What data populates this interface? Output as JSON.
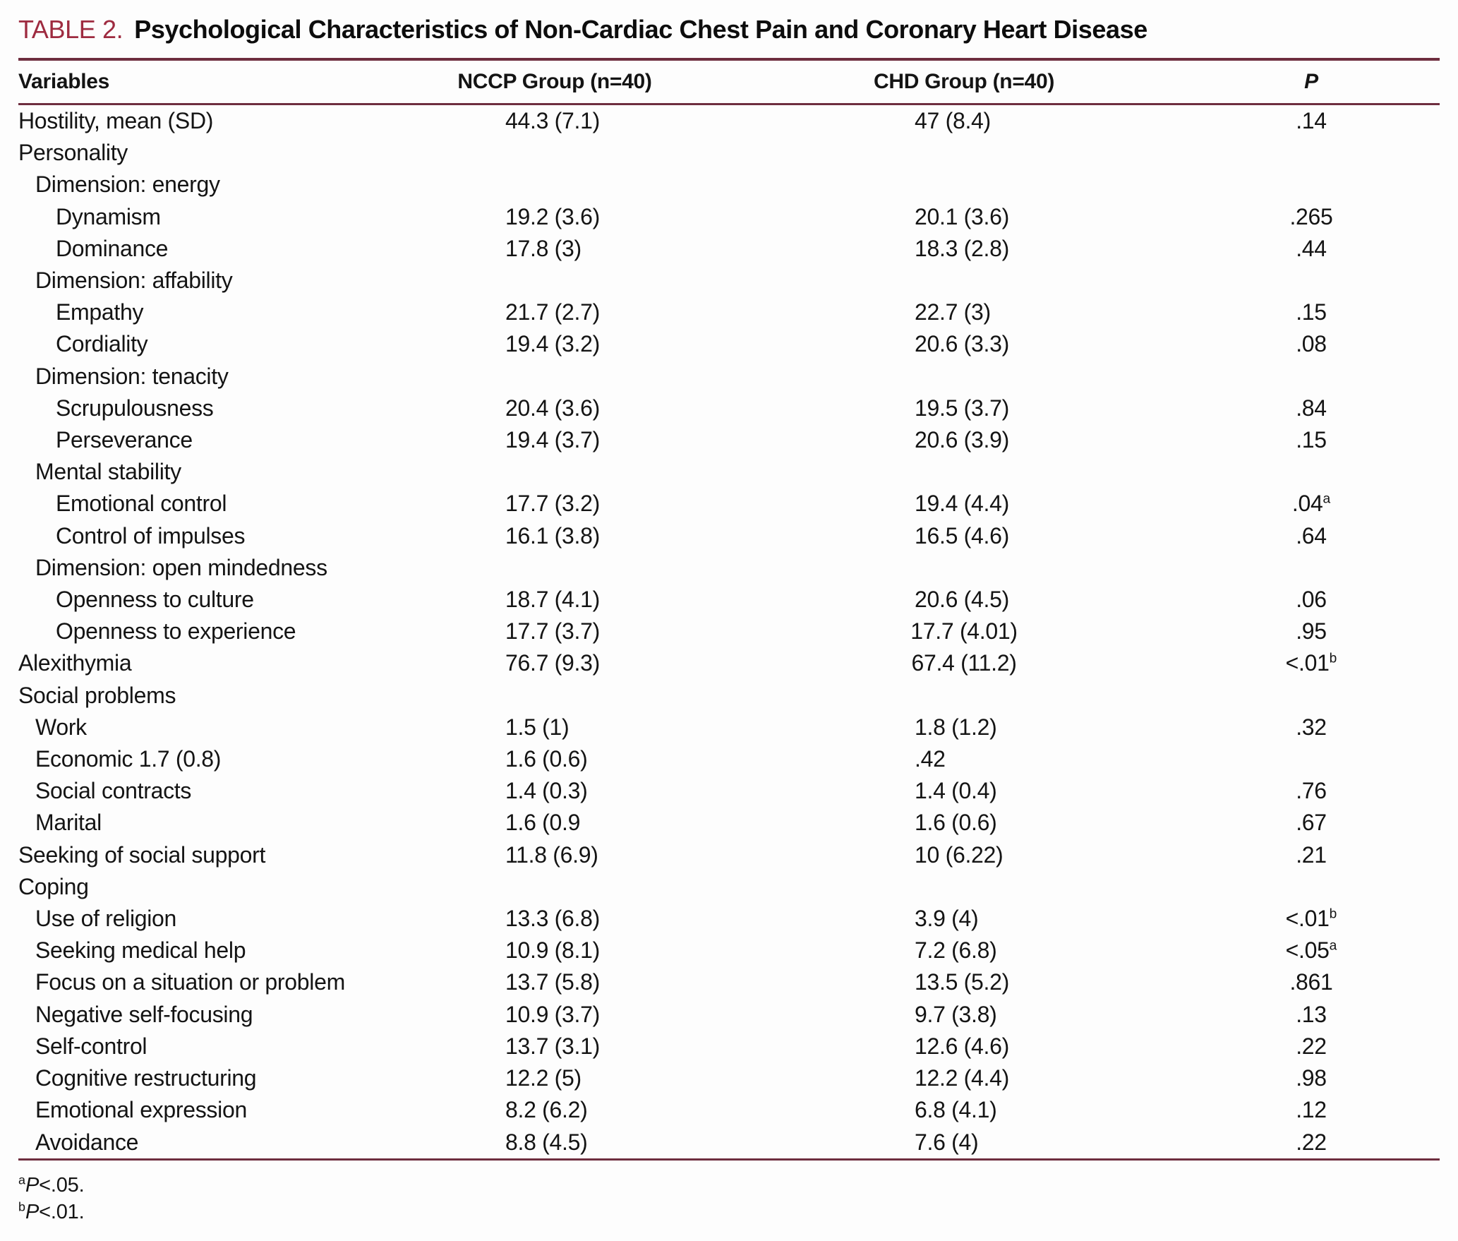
{
  "table": {
    "label": "TABLE 2.",
    "title": "Psychological Characteristics of Non-Cardiac Chest Pain and Coronary Heart Disease",
    "columns": [
      "Variables",
      "NCCP Group (n=40)",
      "CHD Group (n=40)",
      "P"
    ],
    "rows": [
      {
        "indent": 0,
        "label": "Hostility, mean (SD)",
        "nccp": "44.3 (7.1)",
        "chd": "47 (8.4)",
        "p": ".14",
        "psup": ""
      },
      {
        "indent": 0,
        "label": "Personality",
        "nccp": "",
        "chd": "",
        "p": "",
        "psup": ""
      },
      {
        "indent": 1,
        "label": "Dimension: energy",
        "nccp": "",
        "chd": "",
        "p": "",
        "psup": ""
      },
      {
        "indent": 2,
        "label": "Dynamism",
        "nccp": "19.2 (3.6)",
        "chd": "20.1 (3.6)",
        "p": ".265",
        "psup": ""
      },
      {
        "indent": 2,
        "label": "Dominance",
        "nccp": "17.8 (3)",
        "chd": "18.3 (2.8)",
        "p": ".44",
        "psup": ""
      },
      {
        "indent": 1,
        "label": "Dimension: affability",
        "nccp": "",
        "chd": "",
        "p": "",
        "psup": ""
      },
      {
        "indent": 2,
        "label": "Empathy",
        "nccp": "21.7 (2.7)",
        "chd": "22.7 (3)",
        "p": ".15",
        "psup": ""
      },
      {
        "indent": 2,
        "label": "Cordiality",
        "nccp": "19.4 (3.2)",
        "chd": "20.6 (3.3)",
        "p": ".08",
        "psup": ""
      },
      {
        "indent": 1,
        "label": "Dimension: tenacity",
        "nccp": "",
        "chd": "",
        "p": "",
        "psup": ""
      },
      {
        "indent": 2,
        "label": "Scrupulousness",
        "nccp": "20.4 (3.6)",
        "chd": "19.5 (3.7)",
        "p": ".84",
        "psup": ""
      },
      {
        "indent": 2,
        "label": "Perseverance",
        "nccp": "19.4 (3.7)",
        "chd": "20.6 (3.9)",
        "p": ".15",
        "psup": ""
      },
      {
        "indent": 1,
        "label": "Mental stability",
        "nccp": "",
        "chd": "",
        "p": "",
        "psup": ""
      },
      {
        "indent": 2,
        "label": "Emotional control",
        "nccp": "17.7 (3.2)",
        "chd": "19.4 (4.4)",
        "p": ".04",
        "psup": "a"
      },
      {
        "indent": 2,
        "label": "Control of impulses",
        "nccp": "16.1 (3.8)",
        "chd": "16.5 (4.6)",
        "p": ".64",
        "psup": ""
      },
      {
        "indent": 1,
        "label": "Dimension: open mindedness",
        "nccp": "",
        "chd": "",
        "p": "",
        "psup": ""
      },
      {
        "indent": 2,
        "label": "Openness to culture",
        "nccp": "18.7 (4.1)",
        "chd": "20.6 (4.5)",
        "p": ".06",
        "psup": ""
      },
      {
        "indent": 2,
        "label": "Openness to experience",
        "nccp": "17.7 (3.7)",
        "chd": "17.7 (4.01)",
        "p": ".95",
        "psup": ""
      },
      {
        "indent": 0,
        "label": "Alexithymia",
        "nccp": "76.7 (9.3)",
        "chd": "67.4 (11.2)",
        "p": "<.01",
        "psup": "b"
      },
      {
        "indent": 0,
        "label": "Social problems",
        "nccp": "",
        "chd": "",
        "p": "",
        "psup": ""
      },
      {
        "indent": 1,
        "label": "Work",
        "nccp": "1.5 (1)",
        "chd": "1.8 (1.2)",
        "p": ".32",
        "psup": ""
      },
      {
        "indent": 1,
        "label": "Economic 1.7 (0.8)",
        "nccp": "1.6 (0.6)",
        "chd": ".42",
        "p": "",
        "psup": ""
      },
      {
        "indent": 1,
        "label": "Social contracts",
        "nccp": "1.4 (0.3)",
        "chd": "1.4 (0.4)",
        "p": ".76",
        "psup": ""
      },
      {
        "indent": 1,
        "label": "Marital",
        "nccp": "1.6 (0.9",
        "chd": "1.6 (0.6)",
        "p": ".67",
        "psup": ""
      },
      {
        "indent": 0,
        "label": "Seeking of social support",
        "nccp": "11.8 (6.9)",
        "chd": "10 (6.22)",
        "p": ".21",
        "psup": ""
      },
      {
        "indent": 0,
        "label": "Coping",
        "nccp": "",
        "chd": "",
        "p": "",
        "psup": ""
      },
      {
        "indent": 1,
        "label": "Use of religion",
        "nccp": "13.3 (6.8)",
        "chd": "3.9 (4)",
        "p": "<.01",
        "psup": "b"
      },
      {
        "indent": 1,
        "label": "Seeking medical help",
        "nccp": "10.9 (8.1)",
        "chd": "7.2 (6.8)",
        "p": "<.05",
        "psup": "a"
      },
      {
        "indent": 1,
        "label": "Focus on a situation or problem",
        "nccp": "13.7 (5.8)",
        "chd": "13.5 (5.2)",
        "p": ".861",
        "psup": ""
      },
      {
        "indent": 1,
        "label": "Negative self-focusing",
        "nccp": "10.9 (3.7)",
        "chd": "9.7 (3.8)",
        "p": ".13",
        "psup": ""
      },
      {
        "indent": 1,
        "label": "Self-control",
        "nccp": "13.7 (3.1)",
        "chd": "12.6 (4.6)",
        "p": ".22",
        "psup": ""
      },
      {
        "indent": 1,
        "label": "Cognitive restructuring",
        "nccp": "12.2 (5)",
        "chd": "12.2 (4.4)",
        "p": ".98",
        "psup": ""
      },
      {
        "indent": 1,
        "label": "Emotional expression",
        "nccp": "8.2 (6.2)",
        "chd": "6.8 (4.1)",
        "p": ".12",
        "psup": ""
      },
      {
        "indent": 1,
        "label": "Avoidance",
        "nccp": "8.8 (4.5)",
        "chd": "7.6 (4)",
        "p": ".22",
        "psup": ""
      }
    ],
    "footnotes": [
      {
        "marker": "a",
        "var": "P",
        "text": "<.05."
      },
      {
        "marker": "b",
        "var": "P",
        "text": "<.01."
      }
    ],
    "colors": {
      "accent_red": "#9e2b40",
      "rule": "#6e2e3f",
      "text": "#141414",
      "background": "#fdfdfd"
    }
  }
}
